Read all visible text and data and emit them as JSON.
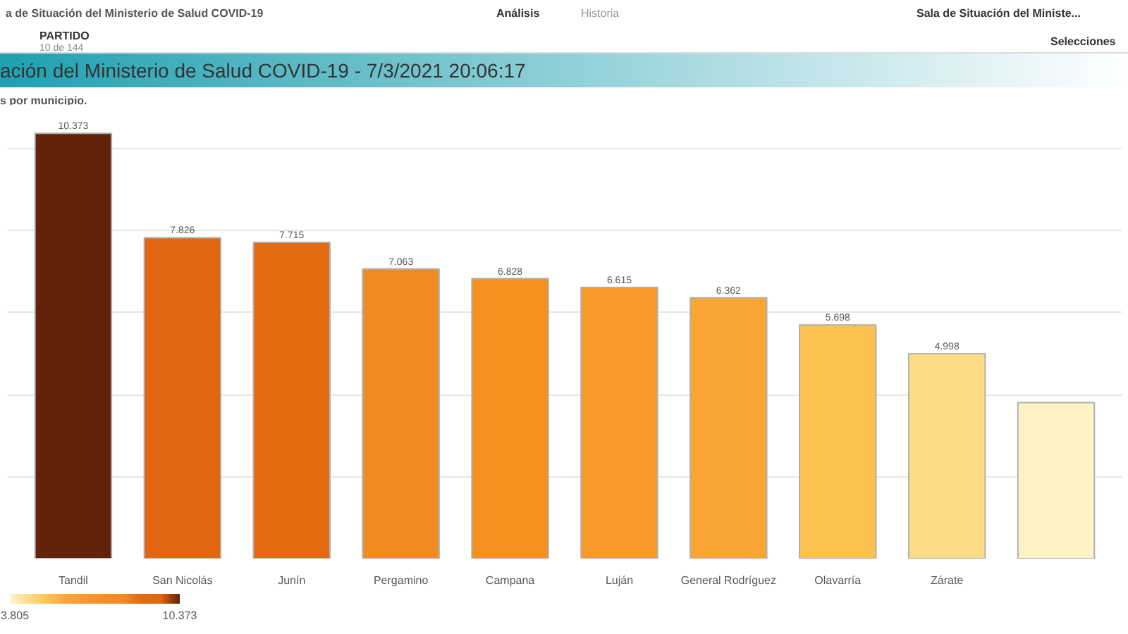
{
  "chart_data": {
    "type": "bar",
    "title": "ación del Ministerio de Salud COVID-19 - 7/3/2021 20:06:17",
    "subtitle": "s por municipio.",
    "annotations": [
      "a de Situación del Ministerio de Salud COVID-19",
      "Análisis",
      "Historia",
      "Sala de Situación del Ministe...",
      "PARTIDO",
      "10 de 144",
      "Selecciones"
    ],
    "categories": [
      "Tandil",
      "San Nicolás",
      "Junín",
      "Pergamino",
      "Campana",
      "Luján",
      "General Rodríguez",
      "Olavarría",
      "Zárate",
      null
    ],
    "values": [
      10373,
      7826,
      7715,
      7063,
      6828,
      6615,
      6362,
      5698,
      4998,
      3805
    ],
    "value_labels": [
      "10.373",
      "7.826",
      "7.715",
      "7.063",
      "6.828",
      "6.615",
      "6.362",
      "5.698",
      "4.998",
      null
    ],
    "colors": [
      "#62230a",
      "#e2650f",
      "#e46a12",
      "#f28a22",
      "#f5901f",
      "#f8992a",
      "#fba535",
      "#fdc150",
      "#fedc85",
      "#fff3c4"
    ],
    "tick_labels": "x",
    "grid": "y",
    "clim": [
      3805,
      10373
    ],
    "cticks": [
      {
        "value": 3805,
        "label": "3.805"
      },
      {
        "value": 10373,
        "label": "10.373"
      }
    ]
  }
}
